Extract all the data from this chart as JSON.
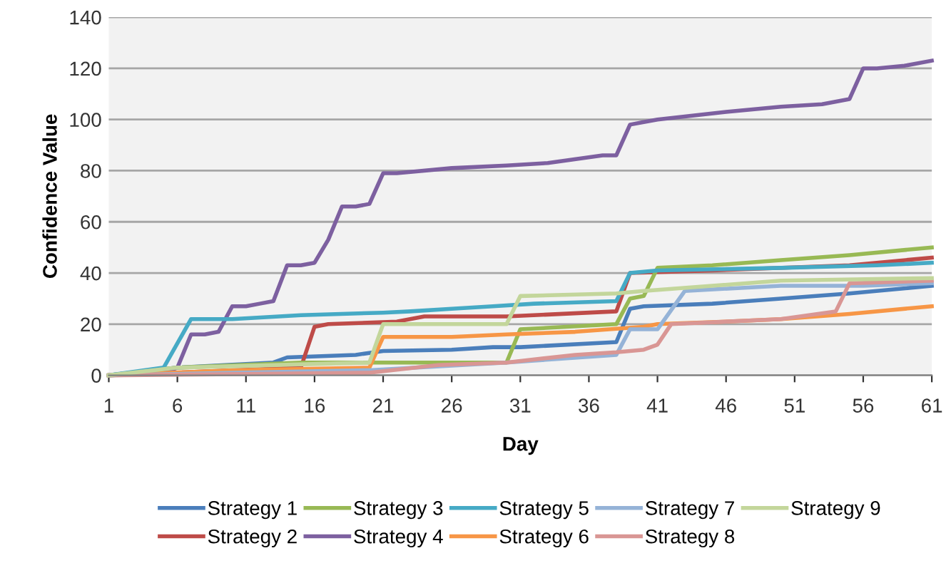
{
  "chart_data": {
    "type": "line",
    "xlabel": "Day",
    "ylabel": "Confidence Value",
    "xlim": [
      1,
      61
    ],
    "xticks": [
      1,
      6,
      11,
      16,
      21,
      26,
      31,
      36,
      41,
      46,
      51,
      56,
      61
    ],
    "ylim": [
      0,
      140
    ],
    "yticks": [
      0,
      20,
      40,
      60,
      80,
      100,
      120,
      140
    ],
    "grid": "y",
    "legend": "bottom",
    "marker": "none",
    "line_style": "solid",
    "series": [
      {
        "name": "Strategy 1",
        "color": "#4a7ebb",
        "x": [
          1,
          6,
          13,
          14,
          19,
          21,
          26,
          29,
          31,
          38,
          39,
          40,
          45,
          50,
          55,
          61
        ],
        "values": [
          0,
          3,
          5,
          7,
          8,
          9.5,
          10,
          11,
          11,
          13,
          26,
          27,
          28,
          30,
          32,
          35
        ]
      },
      {
        "name": "Strategy 2",
        "color": "#be4b48",
        "x": [
          1,
          15,
          16,
          17,
          22,
          24,
          30,
          38,
          39,
          45,
          55,
          61
        ],
        "values": [
          0,
          3,
          19,
          20,
          21,
          23,
          23,
          25,
          40,
          41,
          43,
          46
        ]
      },
      {
        "name": "Strategy 3",
        "color": "#98b954",
        "x": [
          1,
          6,
          15,
          30,
          31,
          38,
          39,
          40,
          41,
          45,
          50,
          55,
          61
        ],
        "values": [
          0,
          3,
          5,
          5,
          18,
          20,
          30,
          31,
          42,
          43,
          45,
          47,
          50
        ]
      },
      {
        "name": "Strategy 4",
        "color": "#7d60a0",
        "x": [
          1,
          5,
          6,
          7,
          8,
          9,
          10,
          11,
          12,
          13,
          14,
          15,
          16,
          17,
          18,
          19,
          20,
          21,
          22,
          26,
          30,
          33,
          37,
          38,
          39,
          40,
          41,
          46,
          50,
          53,
          55,
          56,
          57,
          59,
          61
        ],
        "values": [
          0,
          1,
          3,
          16,
          16,
          17,
          27,
          27,
          28,
          29,
          43,
          43,
          44,
          53,
          66,
          66,
          67,
          79,
          79,
          81,
          82,
          83,
          86,
          86,
          98,
          99,
          100,
          103,
          105,
          106,
          108,
          120,
          120,
          121,
          123
        ]
      },
      {
        "name": "Strategy 5",
        "color": "#46aac5",
        "x": [
          1,
          5,
          7,
          10,
          15,
          21,
          23,
          26,
          29,
          32,
          38,
          39,
          41,
          50,
          57,
          61
        ],
        "values": [
          0,
          3,
          22,
          22,
          23.5,
          24.5,
          25,
          26,
          27,
          28,
          29,
          40,
          41,
          42,
          43,
          44
        ]
      },
      {
        "name": "Strategy 6",
        "color": "#f79646",
        "x": [
          1,
          10,
          20,
          21,
          26,
          30,
          35,
          40,
          41,
          46,
          50,
          55,
          61
        ],
        "values": [
          0,
          2,
          3,
          15,
          15,
          16,
          17,
          19,
          20,
          21,
          22,
          24,
          27
        ]
      },
      {
        "name": "Strategy 7",
        "color": "#95b3d7",
        "x": [
          1,
          20,
          30,
          38,
          39,
          41,
          43,
          50,
          56,
          61
        ],
        "values": [
          0,
          2,
          5,
          8,
          18,
          18,
          33,
          35,
          35,
          36
        ]
      },
      {
        "name": "Strategy 8",
        "color": "#d99694",
        "x": [
          1,
          20,
          25,
          30,
          35,
          38,
          40,
          41,
          42,
          50,
          54,
          55,
          61
        ],
        "values": [
          0,
          1,
          4,
          5,
          8,
          9,
          10,
          12,
          20,
          22,
          25,
          36,
          37
        ]
      },
      {
        "name": "Strategy 9",
        "color": "#c3d69b",
        "x": [
          1,
          6,
          20,
          21,
          30,
          31,
          38,
          40,
          50,
          61
        ],
        "values": [
          0,
          3,
          5,
          20,
          20,
          31,
          32,
          33,
          37,
          38
        ]
      }
    ]
  }
}
